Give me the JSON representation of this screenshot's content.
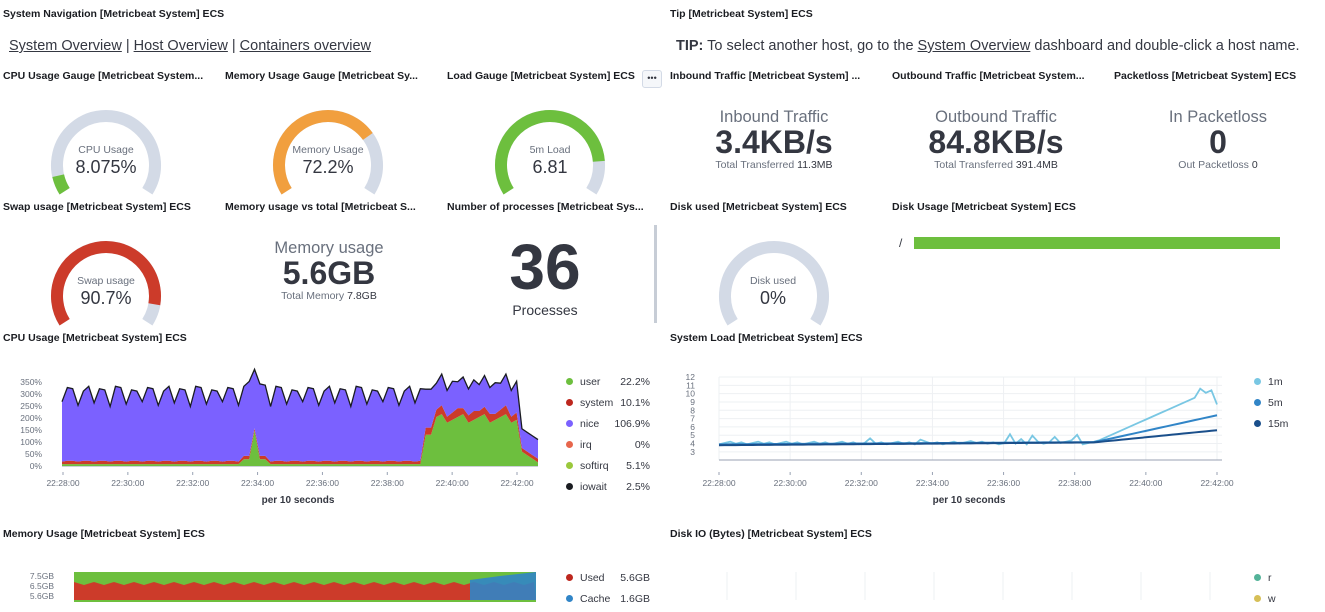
{
  "panels": {
    "nav": {
      "title": "System Navigation [Metricbeat System] ECS",
      "links": [
        "System Overview",
        "Host Overview",
        "Containers overview"
      ],
      "separator": "|"
    },
    "tip": {
      "title": "Tip [Metricbeat System] ECS",
      "bold": "TIP:",
      "text_before": " To select another host, go to the ",
      "link": "System Overview",
      "text_after": " dashboard and double-click a host name."
    },
    "cpu_gauge": {
      "title": "CPU Usage Gauge [Metricbeat System...",
      "label": "CPU Usage",
      "value": "8.075%",
      "fraction": 0.08075,
      "color": "#54b399"
    },
    "mem_gauge": {
      "title": "Memory Usage Gauge [Metricbeat Sy...",
      "label": "Memory Usage",
      "value": "72.2%",
      "fraction": 0.722,
      "color": "#f19f3e"
    },
    "load_gauge": {
      "title": "Load Gauge [Metricbeat System] ECS",
      "label": "5m Load",
      "value": "6.81",
      "fraction": 0.85,
      "color": "#6dbf3e"
    },
    "inbound": {
      "title": "Inbound Traffic [Metricbeat System] ...",
      "label": "Inbound Traffic",
      "value": "3.4KB/s",
      "sub_label": "Total Transferred",
      "sub_value": "11.3MB"
    },
    "outbound": {
      "title": "Outbound Traffic [Metricbeat System...",
      "label": "Outbound Traffic",
      "value": "84.8KB/s",
      "sub_label": "Total Transferred",
      "sub_value": "391.4MB"
    },
    "packetloss": {
      "title": "Packetloss [Metricbeat System] ECS",
      "label": "In Packetloss",
      "value": "0",
      "sub_label": "Out Packetloss",
      "sub_value": "0"
    },
    "swap_gauge": {
      "title": "Swap usage [Metricbeat System] ECS",
      "label": "Swap usage",
      "value": "90.7%",
      "fraction": 0.907,
      "color": "#bd271e"
    },
    "mem_vs_total": {
      "title": "Memory usage vs total [Metricbeat S...",
      "label": "Memory usage",
      "value": "5.6GB",
      "sub_label": "Total Memory",
      "sub_value": "7.8GB"
    },
    "processes": {
      "title": "Number of processes [Metricbeat Sys...",
      "value": "36",
      "label": "Processes"
    },
    "disk_used": {
      "title": "Disk used [Metricbeat System] ECS",
      "label": "Disk used",
      "value": "0%",
      "fraction": 0
    },
    "disk_usage": {
      "title": "Disk Usage [Metricbeat System] ECS",
      "mount": "/",
      "bar_color": "#6dbf3e",
      "fraction": 1.0
    },
    "cpu_usage": {
      "title": "CPU Usage [Metricbeat System] ECS",
      "x_title": "per 10 seconds"
    },
    "system_load": {
      "title": "System Load [Metricbeat System] ECS",
      "x_title": "per 10 seconds"
    },
    "memory_usage": {
      "title": "Memory Usage [Metricbeat System] ECS"
    },
    "disk_io": {
      "title": "Disk IO (Bytes) [Metricbeat System] ECS"
    }
  },
  "chart_data": [
    {
      "type": "area",
      "id": "cpu_usage",
      "x_ticks": [
        "22:28:00",
        "22:30:00",
        "22:32:00",
        "22:34:00",
        "22:36:00",
        "22:38:00",
        "22:40:00",
        "22:42:00"
      ],
      "y_ticks": [
        "0%",
        "50%",
        "100%",
        "150%",
        "200%",
        "250%",
        "300%",
        "350%"
      ],
      "ylim": [
        0,
        375
      ],
      "xlabel": "per 10 seconds",
      "legend": [
        {
          "name": "user",
          "value": "22.2%",
          "color": "#6dbf3e"
        },
        {
          "name": "system",
          "value": "10.1%",
          "color": "#bd271e"
        },
        {
          "name": "nice",
          "value": "106.9%",
          "color": "#7b61ff"
        },
        {
          "name": "irq",
          "value": "0%",
          "color": "#e7664c"
        },
        {
          "name": "softirq",
          "value": "5.1%",
          "color": "#9ac83c"
        },
        {
          "name": "iowait",
          "value": "2.5%",
          "color": "#1a1c21"
        }
      ]
    },
    {
      "type": "line",
      "id": "system_load",
      "x_ticks": [
        "22:28:00",
        "22:30:00",
        "22:32:00",
        "22:34:00",
        "22:36:00",
        "22:38:00",
        "22:40:00",
        "22:42:00"
      ],
      "y_ticks": [
        "3",
        "4",
        "5",
        "6",
        "7",
        "8",
        "9",
        "10",
        "11",
        "12"
      ],
      "ylim": [
        2.5,
        12
      ],
      "xlabel": "per 10 seconds",
      "legend": [
        {
          "name": "1m",
          "color": "#79c7e3"
        },
        {
          "name": "5m",
          "color": "#3185c7"
        },
        {
          "name": "15m",
          "color": "#1a4f8b"
        }
      ]
    },
    {
      "type": "area",
      "id": "memory_usage",
      "y_ticks": [
        "5.6GB",
        "6.5GB",
        "7.5GB"
      ],
      "legend": [
        {
          "name": "Used",
          "value": "5.6GB",
          "color": "#bd271e"
        },
        {
          "name": "Cache",
          "value": "1.6GB",
          "color": "#3185c7"
        }
      ]
    },
    {
      "type": "line",
      "id": "disk_io",
      "legend": [
        {
          "name": "r",
          "color": "#54b399"
        },
        {
          "name": "w",
          "color": "#d6bf57"
        }
      ]
    }
  ]
}
